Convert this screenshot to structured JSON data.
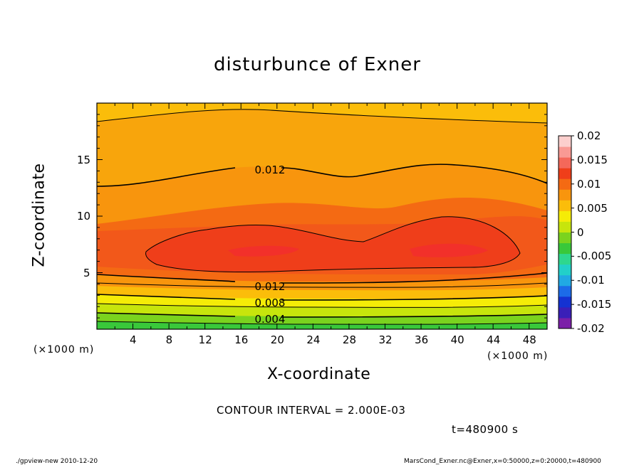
{
  "title": "disturbunce of Exner",
  "chart_data": {
    "type": "heatmap",
    "title": "disturbunce of Exner",
    "xlabel": "X-coordinate",
    "ylabel": "Z-coordinate",
    "xlim": [
      0,
      50
    ],
    "ylim": [
      0,
      20
    ],
    "x_unit": "(×1000 m)",
    "z_unit": "(×1000 m)",
    "x_ticks": [
      4,
      8,
      12,
      16,
      20,
      24,
      28,
      32,
      36,
      40,
      44,
      48
    ],
    "y_ticks": [
      5,
      10,
      15
    ],
    "contour_labels": [
      {
        "text": "0.012",
        "x": 18,
        "z": 14.1
      },
      {
        "text": "0.012",
        "x": 18,
        "z": 3.8
      },
      {
        "text": "0.008",
        "x": 18,
        "z": 2.3
      },
      {
        "text": "0.004",
        "x": 18,
        "z": 0.9
      }
    ],
    "colorbar": {
      "ticks": [
        "0.02",
        "0.015",
        "0.01",
        "0.005",
        "0",
        "-0.005",
        "-0.01",
        "-0.015",
        "-0.02"
      ],
      "range": [
        -0.02,
        0.02
      ],
      "colors": [
        "#7b1fa8",
        "#3a1fb8",
        "#1432d2",
        "#1c6be8",
        "#21a9e3",
        "#22d0c9",
        "#2ed78e",
        "#39c83a",
        "#7ad31e",
        "#c7e50c",
        "#f5ec07",
        "#fbbd0a",
        "#f8950d",
        "#f46a13",
        "#ef3e1a",
        "#f4685a",
        "#f99a94",
        "#fccfcd"
      ]
    }
  },
  "contour_interval": "CONTOUR INTERVAL = 2.000E-03",
  "time_label": "t=480900 s",
  "footer_left": "./gpview-new   2010-12-20",
  "footer_right": "MarsCond_Exner.nc@Exner,x=0:50000,z=0:20000,t=480900"
}
